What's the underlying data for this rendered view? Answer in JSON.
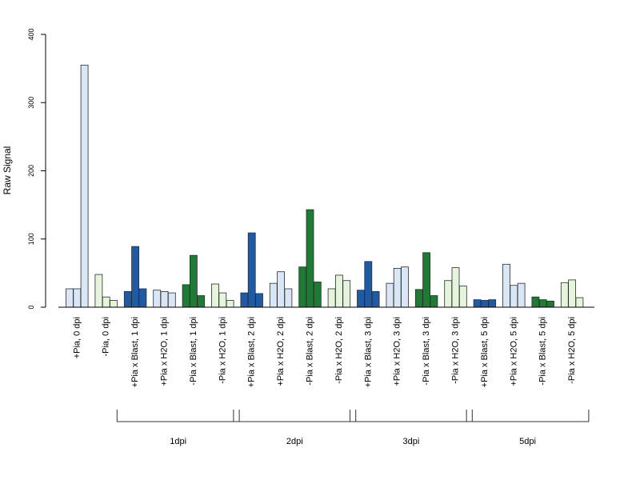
{
  "chart_data": {
    "type": "bar",
    "ylabel": "Raw Signal",
    "ylim": [
      0,
      400
    ],
    "yticks": [
      0,
      100,
      200,
      300,
      400
    ],
    "colors": {
      "dark_blue": "#1f5aa6",
      "light_blue": "#d8e6f5",
      "dark_green": "#1f7a35",
      "light_green": "#e4f5dc"
    },
    "categories": [
      {
        "label": "+Pia, 0 dpi",
        "color": "light_blue",
        "values": [
          27,
          27,
          355
        ]
      },
      {
        "label": "-Pia, 0 dpi",
        "color": "light_green",
        "values": [
          48,
          15,
          10
        ]
      },
      {
        "label": "+Pia x Blast, 1 dpi",
        "color": "dark_blue",
        "values": [
          23,
          89,
          27
        ]
      },
      {
        "label": "+Pia x H2O, 1 dpi",
        "color": "light_blue",
        "values": [
          25,
          23,
          21
        ]
      },
      {
        "label": "-Pia x Blast, 1 dpi",
        "color": "dark_green",
        "values": [
          33,
          76,
          17
        ]
      },
      {
        "label": "-Pia x H2O, 1 dpi",
        "color": "light_green",
        "values": [
          34,
          21,
          10
        ]
      },
      {
        "label": "+Pia x Blast, 2 dpi",
        "color": "dark_blue",
        "values": [
          21,
          109,
          20
        ]
      },
      {
        "label": "+Pia x H2O, 2 dpi",
        "color": "light_blue",
        "values": [
          35,
          52,
          27
        ]
      },
      {
        "label": "-Pia x Blast, 2 dpi",
        "color": "dark_green",
        "values": [
          59,
          143,
          37
        ]
      },
      {
        "label": "-Pia x H2O, 2 dpi",
        "color": "light_green",
        "values": [
          27,
          47,
          39
        ]
      },
      {
        "label": "+Pia x Blast, 3 dpi",
        "color": "dark_blue",
        "values": [
          25,
          67,
          23
        ]
      },
      {
        "label": "+Pia x H2O, 3 dpi",
        "color": "light_blue",
        "values": [
          35,
          57,
          59
        ]
      },
      {
        "label": "-Pia x Blast, 3 dpi",
        "color": "dark_green",
        "values": [
          26,
          80,
          17
        ]
      },
      {
        "label": "-Pia x H2O, 3 dpi",
        "color": "light_green",
        "values": [
          39,
          58,
          31
        ]
      },
      {
        "label": "+Pia x Blast, 5 dpi",
        "color": "dark_blue",
        "values": [
          11,
          10,
          11
        ]
      },
      {
        "label": "+Pia x H2O, 5 dpi",
        "color": "light_blue",
        "values": [
          63,
          32,
          35
        ]
      },
      {
        "label": "-Pia x Blast, 5 dpi",
        "color": "dark_green",
        "values": [
          15,
          11,
          9
        ]
      },
      {
        "label": "-Pia x H2O, 5 dpi",
        "color": "light_green",
        "values": [
          36,
          40,
          14
        ]
      }
    ],
    "groups": [
      {
        "label": "1dpi",
        "first": 2,
        "last": 5
      },
      {
        "label": "2dpi",
        "first": 6,
        "last": 9
      },
      {
        "label": "3dpi",
        "first": 10,
        "last": 13
      },
      {
        "label": "5dpi",
        "first": 14,
        "last": 17
      }
    ]
  }
}
